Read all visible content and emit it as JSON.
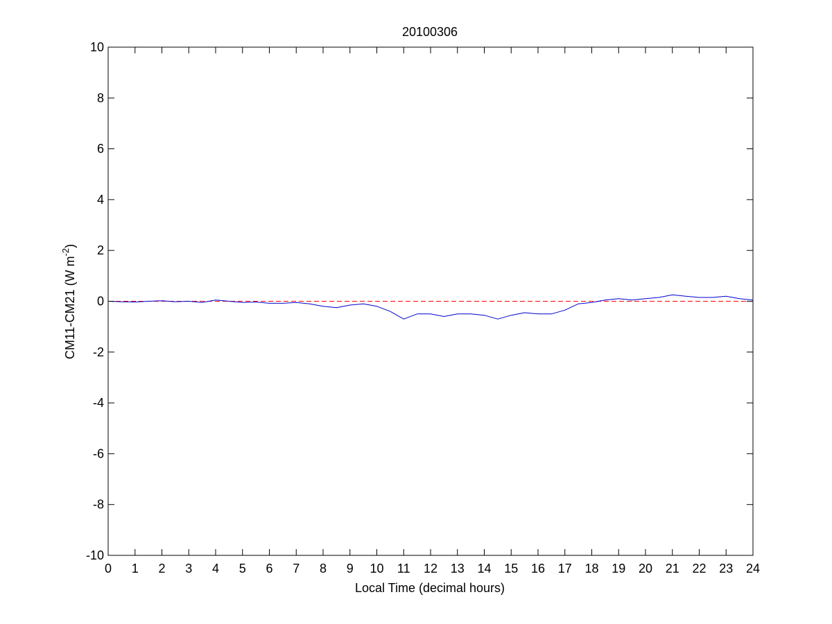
{
  "chart_data": {
    "type": "line",
    "title": "20100306",
    "xlabel": "Local Time (decimal hours)",
    "ylabel_main": "CM11-CM21 (W m",
    "ylabel_sup": "-2",
    "ylabel_close": ")",
    "xlim": [
      0,
      24
    ],
    "ylim": [
      -10,
      10
    ],
    "x_ticks": [
      0,
      1,
      2,
      3,
      4,
      5,
      6,
      7,
      8,
      9,
      10,
      11,
      12,
      13,
      14,
      15,
      16,
      17,
      18,
      19,
      20,
      21,
      22,
      23,
      24
    ],
    "y_ticks": [
      -10,
      -8,
      -6,
      -4,
      -2,
      0,
      2,
      4,
      6,
      8,
      10
    ],
    "x_tick_labels": [
      "0",
      "1",
      "2",
      "3",
      "4",
      "5",
      "6",
      "7",
      "8",
      "9",
      "10",
      "11",
      "12",
      "13",
      "14",
      "15",
      "16",
      "17",
      "18",
      "19",
      "20",
      "21",
      "22",
      "23",
      "24"
    ],
    "y_tick_labels": [
      "-10",
      "-8",
      "-6",
      "-4",
      "-2",
      "0",
      "2",
      "4",
      "6",
      "8",
      "10"
    ],
    "grid": false,
    "reference_line": {
      "y": 0,
      "color": "#ff0000",
      "style": "dashed"
    },
    "series": [
      {
        "color": "#0000cc",
        "x": [
          0,
          0.5,
          1,
          1.5,
          2,
          2.5,
          3,
          3.5,
          4,
          4.5,
          5,
          5.5,
          6,
          6.5,
          7,
          7.5,
          8,
          8.5,
          9,
          9.5,
          10,
          10.5,
          11,
          11.5,
          12,
          12.5,
          13,
          13.5,
          14,
          14.5,
          15,
          15.5,
          16,
          16.5,
          17,
          17.5,
          18,
          18.5,
          19,
          19.5,
          20,
          20.5,
          21,
          21.5,
          22,
          22.5,
          23,
          23.5,
          24
        ],
        "y": [
          0.0,
          -0.02,
          -0.03,
          0.0,
          0.02,
          -0.02,
          0.0,
          -0.05,
          0.05,
          0.0,
          -0.05,
          -0.03,
          -0.08,
          -0.08,
          -0.05,
          -0.1,
          -0.2,
          -0.25,
          -0.15,
          -0.1,
          -0.2,
          -0.4,
          -0.7,
          -0.5,
          -0.5,
          -0.6,
          -0.5,
          -0.5,
          -0.55,
          -0.7,
          -0.55,
          -0.45,
          -0.5,
          -0.5,
          -0.35,
          -0.1,
          -0.05,
          0.05,
          0.1,
          0.05,
          0.1,
          0.15,
          0.25,
          0.2,
          0.15,
          0.15,
          0.2,
          0.1,
          0.05
        ]
      }
    ]
  }
}
